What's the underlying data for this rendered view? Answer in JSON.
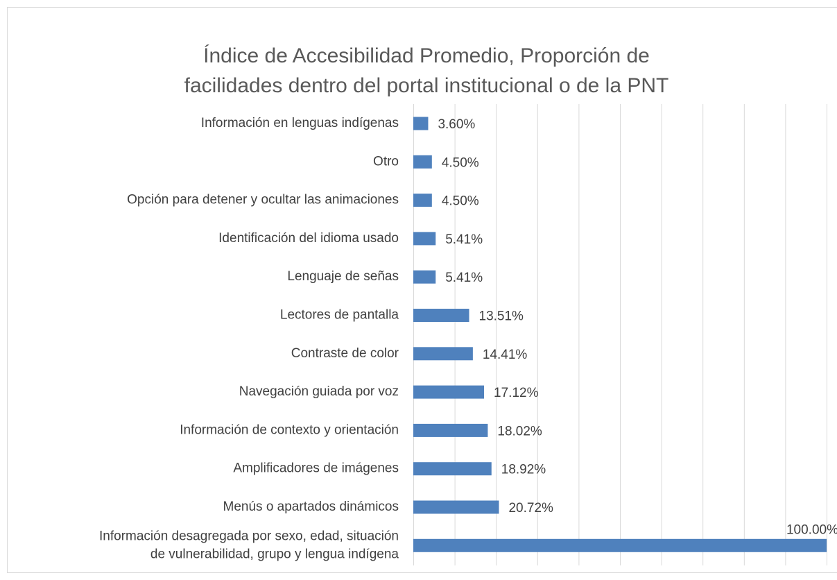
{
  "chart_data": {
    "type": "bar",
    "orientation": "horizontal",
    "title": "Índice de Accesibilidad Promedio, Proporción de\nfacilidades dentro del portal institucional o de la PNT",
    "categories": [
      "Información en lenguas indígenas",
      "Otro",
      "Opción para detener y ocultar las animaciones",
      "Identificación del idioma usado",
      "Lenguaje de señas",
      "Lectores de pantalla",
      "Contraste de color",
      "Navegación guiada por voz",
      "Información de contexto y orientación",
      "Amplificadores de imágenes",
      "Menús o apartados dinámicos",
      "Información desagregada por sexo, edad, situación\nde vulnerabilidad, grupo y lengua indígena"
    ],
    "values": [
      3.6,
      4.5,
      4.5,
      5.41,
      5.41,
      13.51,
      14.41,
      17.12,
      18.02,
      18.92,
      20.72,
      100
    ],
    "value_labels": [
      "3.60%",
      "4.50%",
      "4.50%",
      "5.41%",
      "5.41%",
      "13.51%",
      "14.41%",
      "17.12%",
      "18.02%",
      "18.92%",
      "20.72%",
      "100.00%"
    ],
    "color": "#4f81bd",
    "xlim": [
      0,
      100
    ],
    "xticks": [
      0,
      10,
      20,
      30,
      40,
      50,
      60,
      70,
      80,
      90,
      100
    ],
    "grid": true
  }
}
